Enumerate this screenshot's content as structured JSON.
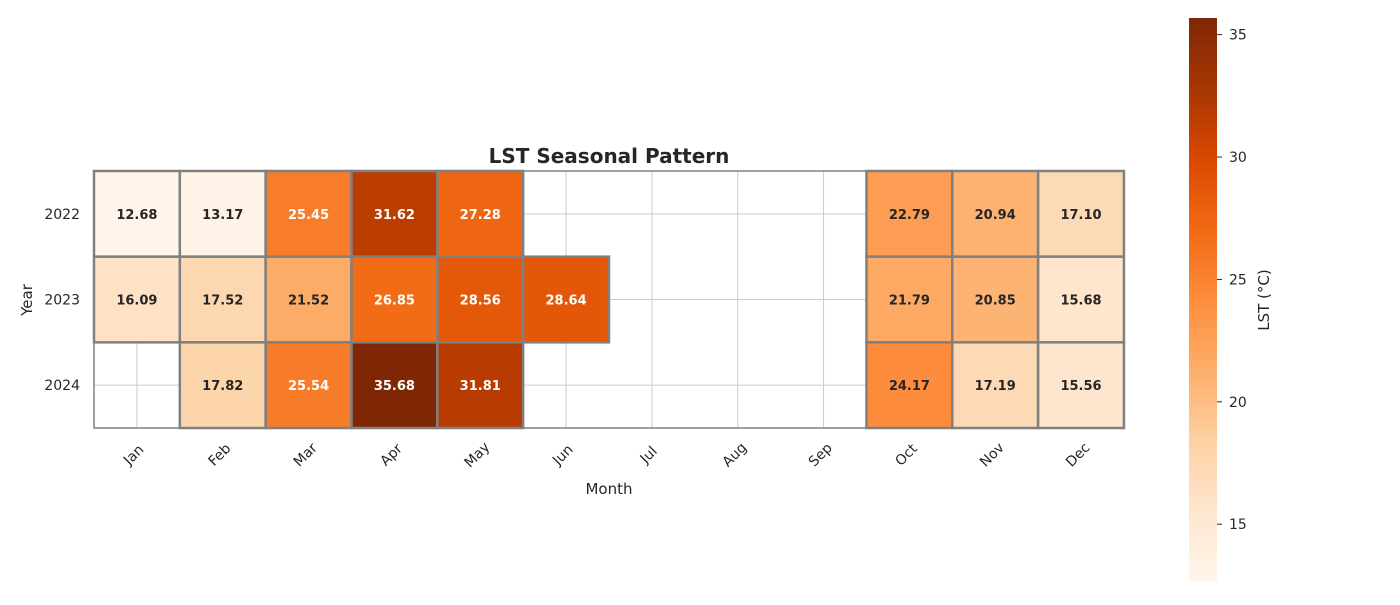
{
  "chart_data": {
    "type": "heatmap",
    "title": "LST Seasonal Pattern",
    "xlabel": "Month",
    "ylabel": "Year",
    "x_categories": [
      "Jan",
      "Feb",
      "Mar",
      "Apr",
      "May",
      "Jun",
      "Jul",
      "Aug",
      "Sep",
      "Oct",
      "Nov",
      "Dec"
    ],
    "y_categories": [
      "2022",
      "2023",
      "2024"
    ],
    "values": [
      [
        12.68,
        13.17,
        25.45,
        31.62,
        27.28,
        null,
        null,
        null,
        null,
        22.79,
        20.94,
        17.1
      ],
      [
        16.09,
        17.52,
        21.52,
        26.85,
        28.56,
        28.64,
        null,
        null,
        null,
        21.79,
        20.85,
        15.68
      ],
      [
        null,
        17.82,
        25.54,
        35.68,
        31.81,
        null,
        null,
        null,
        null,
        24.17,
        17.19,
        15.56
      ]
    ],
    "value_format_decimals": 2,
    "colormap": "Oranges",
    "colorbar": {
      "label": "LST (°C)",
      "range": [
        12.68,
        35.68
      ],
      "ticks": [
        15,
        20,
        25,
        30,
        35
      ]
    },
    "grid": true,
    "colors": {
      "cell_border": "#808080",
      "grid_line": "#cccccc",
      "text_dark": "#262626",
      "text_light": "#ffffff"
    }
  }
}
